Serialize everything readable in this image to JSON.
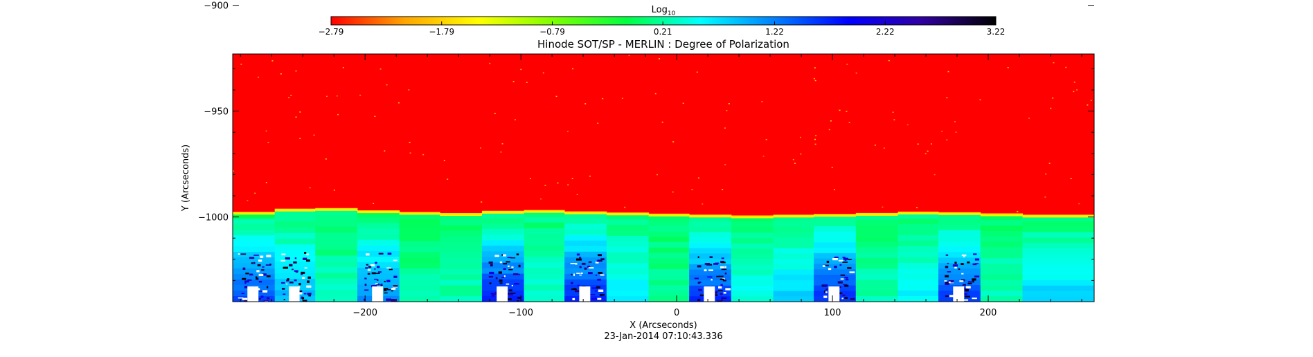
{
  "chart_data": {
    "type": "heatmap",
    "title": "Hinode SOT/SP - MERLIN : Degree of Polarization",
    "subtitle": "23-Jan-2014 07:10:43.336",
    "xlabel": "X (Arcseconds)",
    "ylabel": "Y (Arcseconds)",
    "xlim": [
      -285,
      268
    ],
    "ylim": [
      -1040,
      -923
    ],
    "xticks": [
      -200,
      -100,
      0,
      100,
      200
    ],
    "yticks": [
      -900,
      -950,
      -1000
    ],
    "xtick_labels": [
      "−200",
      "−100",
      "0",
      "100",
      "200"
    ],
    "ytick_labels": [
      "−900",
      "−950",
      "−1000"
    ],
    "colorbar": {
      "label_base": "Log",
      "label_sub": "10",
      "range": [
        -2.79,
        3.22
      ],
      "ticks": [
        -2.79,
        -1.79,
        -0.79,
        0.21,
        1.22,
        2.22,
        3.22
      ],
      "tick_labels": [
        "−2.79",
        "−1.79",
        "−0.79",
        "0.21",
        "1.22",
        "2.22",
        "3.22"
      ],
      "colors": [
        "#ff0000",
        "#ffa500",
        "#ffff00",
        "#7fff00",
        "#00ff40",
        "#00ffff",
        "#0080ff",
        "#0000ff",
        "#3000a0",
        "#000000"
      ]
    },
    "limb_y": [
      -999,
      -997,
      -996,
      -998,
      -999,
      -997,
      -998,
      -999,
      -1000,
      -999,
      -998,
      -999,
      -1000
    ],
    "limb_x": [
      -285,
      -250,
      -230,
      -180,
      -130,
      -100,
      -60,
      -10,
      45,
      120,
      160,
      210,
      268
    ],
    "strips": [
      {
        "x0": -285,
        "x1": -258,
        "above_limb": 0.21,
        "bottom": 1.5,
        "patch": true
      },
      {
        "x0": -258,
        "x1": -232,
        "above_limb": 0.21,
        "bottom": 0.9,
        "patch": true
      },
      {
        "x0": -232,
        "x1": -205,
        "above_limb": 0.21,
        "bottom": 0.3,
        "patch": false
      },
      {
        "x0": -205,
        "x1": -178,
        "above_limb": 0.21,
        "bottom": 1.2,
        "patch": true
      },
      {
        "x0": -178,
        "x1": -152,
        "above_limb": 0.21,
        "bottom": 0.2,
        "patch": false
      },
      {
        "x0": -152,
        "x1": -125,
        "above_limb": 0.21,
        "bottom": 0.3,
        "patch": false
      },
      {
        "x0": -125,
        "x1": -98,
        "above_limb": 0.21,
        "bottom": 1.8,
        "patch": true
      },
      {
        "x0": -98,
        "x1": -72,
        "above_limb": 0.21,
        "bottom": 0.4,
        "patch": false
      },
      {
        "x0": -72,
        "x1": -45,
        "above_limb": 0.21,
        "bottom": 1.8,
        "patch": true
      },
      {
        "x0": -45,
        "x1": -18,
        "above_limb": 0.21,
        "bottom": 0.7,
        "patch": false
      },
      {
        "x0": -18,
        "x1": 8,
        "above_limb": 0.21,
        "bottom": 0.2,
        "patch": false
      },
      {
        "x0": 8,
        "x1": 35,
        "above_limb": 0.21,
        "bottom": 1.6,
        "patch": true
      },
      {
        "x0": 35,
        "x1": 62,
        "above_limb": 0.21,
        "bottom": 0.5,
        "patch": false
      },
      {
        "x0": 62,
        "x1": 88,
        "above_limb": 0.21,
        "bottom": 0.8,
        "patch": false
      },
      {
        "x0": 88,
        "x1": 115,
        "above_limb": 0.21,
        "bottom": 1.7,
        "patch": true
      },
      {
        "x0": 115,
        "x1": 142,
        "above_limb": 0.21,
        "bottom": 0.3,
        "patch": false
      },
      {
        "x0": 142,
        "x1": 168,
        "above_limb": 0.21,
        "bottom": 0.6,
        "patch": false
      },
      {
        "x0": 168,
        "x1": 195,
        "above_limb": 0.21,
        "bottom": 1.6,
        "patch": true
      },
      {
        "x0": 195,
        "x1": 222,
        "above_limb": 0.21,
        "bottom": 0.3,
        "patch": false
      },
      {
        "x0": 222,
        "x1": 268,
        "above_limb": 0.21,
        "bottom": 0.8,
        "patch": false
      }
    ],
    "disk_value": -2.79,
    "grid": false,
    "legend": "colorbar-top"
  }
}
